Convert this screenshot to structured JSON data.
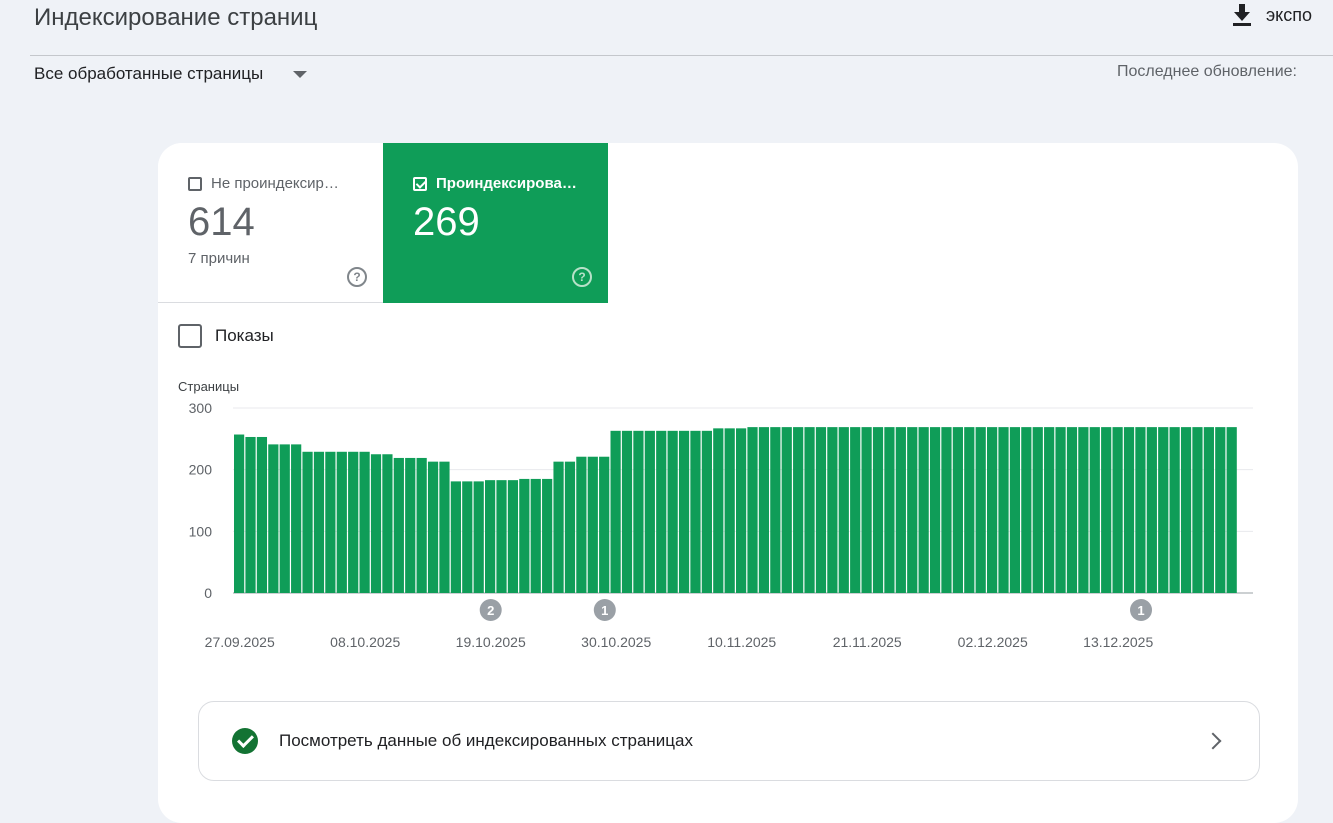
{
  "header": {
    "title": "Индексирование страниц",
    "export_label": "экспо",
    "filter_label": "Все обработанные страницы",
    "last_update_label": "Последнее обновление:"
  },
  "tabs": {
    "not_indexed": {
      "label": "Не проиндексир…",
      "count": "614",
      "sub": "7 причин",
      "checked": false
    },
    "indexed": {
      "label": "Проиндексирова…",
      "count": "269",
      "checked": true
    }
  },
  "shows_label": "Показы",
  "link_row": {
    "label": "Посмотреть данные об индексированных страницах"
  },
  "colors": {
    "accent": "#0f9d58",
    "background": "#eff2f7"
  },
  "chart_data": {
    "type": "bar",
    "ylabel": "Страницы",
    "ylim": [
      0,
      300
    ],
    "yticks": [
      0,
      100,
      200,
      300
    ],
    "grid": true,
    "x_tick_labels": [
      "27.09.2025",
      "08.10.2025",
      "19.10.2025",
      "30.10.2025",
      "10.11.2025",
      "21.11.2025",
      "02.12.2025",
      "13.12.2025"
    ],
    "x_tick_index": [
      0,
      11,
      22,
      33,
      44,
      55,
      66,
      77
    ],
    "series": [
      {
        "values": [
          257,
          253,
          253,
          241,
          241,
          241,
          229,
          229,
          229,
          229,
          229,
          229,
          225,
          225,
          219,
          219,
          219,
          213,
          213,
          181,
          181,
          181,
          183,
          183,
          183,
          185,
          185,
          185,
          213,
          213,
          221,
          221,
          221,
          263,
          263,
          263,
          263,
          263,
          263,
          263,
          263,
          263,
          267,
          267,
          267,
          269,
          269,
          269,
          269,
          269,
          269,
          269,
          269,
          269,
          269,
          269,
          269,
          269,
          269,
          269,
          269,
          269,
          269,
          269,
          269,
          269,
          269,
          269,
          269,
          269,
          269,
          269,
          269,
          269,
          269,
          269,
          269,
          269,
          269,
          269,
          269,
          269,
          269,
          269,
          269,
          269,
          269,
          269
        ]
      }
    ],
    "annotations": [
      {
        "index": 22,
        "label": "2"
      },
      {
        "index": 32,
        "label": "1"
      },
      {
        "index": 79,
        "label": "1"
      }
    ]
  }
}
